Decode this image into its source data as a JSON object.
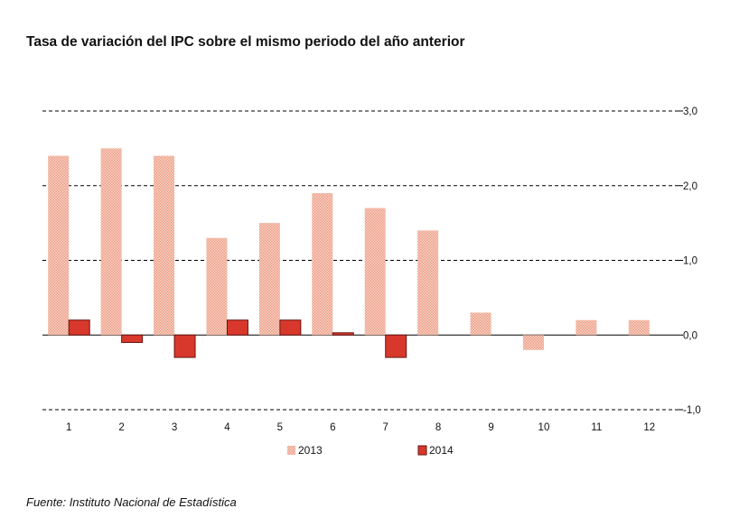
{
  "title": "Tasa de variación del IPC sobre el mismo periodo del año anterior",
  "source": "Fuente: Instituto Nacional de Estadística",
  "colors": {
    "s2013": "#f3b6a3",
    "s2014": "#d8382c",
    "s2014_border": "#6a1410",
    "grid": "#000000"
  },
  "chart_data": {
    "type": "bar",
    "title": "Tasa de variación del IPC sobre el mismo periodo del año anterior",
    "categories": [
      "1",
      "2",
      "3",
      "4",
      "5",
      "6",
      "7",
      "8",
      "9",
      "10",
      "11",
      "12"
    ],
    "series": [
      {
        "name": "2013",
        "values": [
          2.4,
          2.5,
          2.4,
          1.3,
          1.5,
          1.9,
          1.7,
          1.4,
          0.3,
          -0.2,
          0.2,
          0.2
        ]
      },
      {
        "name": "2014",
        "values": [
          0.2,
          -0.1,
          -0.3,
          0.2,
          0.2,
          0.03,
          -0.3,
          null,
          null,
          null,
          null,
          null
        ]
      }
    ],
    "ylim": [
      -1.0,
      3.0
    ],
    "yticks": [
      "-1,0",
      "0,0",
      "1,0",
      "2,0",
      "3,0"
    ],
    "ytick_values": [
      -1.0,
      0.0,
      1.0,
      2.0,
      3.0
    ],
    "grid": "dashed horizontal",
    "legend": "bottom",
    "y_axis_side": "right"
  }
}
